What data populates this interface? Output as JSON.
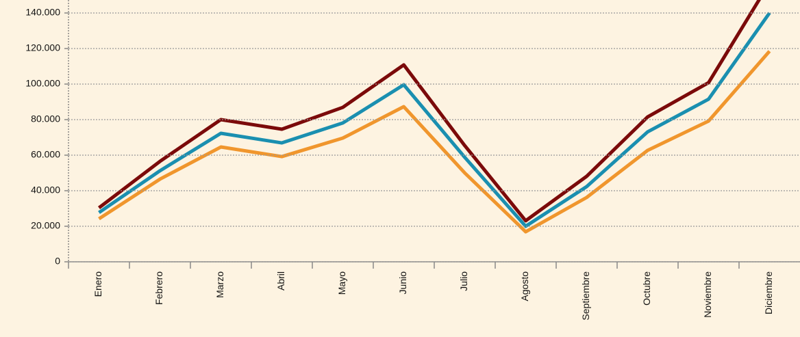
{
  "chart_data": {
    "type": "line",
    "categories": [
      "Enero",
      "Febrero",
      "Marzo",
      "Abril",
      "Mayo",
      "Junio",
      "Julio",
      "Agosto",
      "Septiembre",
      "Octubre",
      "Noviembre",
      "Diciembre"
    ],
    "series": [
      {
        "color": "#7b0a0a",
        "values": [
          30400,
          56500,
          80000,
          74600,
          86900,
          110800,
          65400,
          23100,
          48100,
          81500,
          100800,
          157000
        ]
      },
      {
        "color": "#1a8fb0",
        "values": [
          27700,
          51200,
          72300,
          66900,
          78100,
          99600,
          58800,
          20000,
          42300,
          73100,
          91500,
          140000
        ]
      },
      {
        "color": "#f0962d",
        "values": [
          24200,
          46500,
          64600,
          59200,
          69600,
          87300,
          50000,
          16900,
          36200,
          62700,
          79200,
          118500
        ]
      }
    ],
    "ylim": [
      0,
      147300
    ],
    "yticks": [
      0,
      {
        "value": 20000,
        "label": "20.000"
      },
      {
        "value": 40000,
        "label": "40.000"
      },
      {
        "value": 60000,
        "label": "60.000"
      },
      {
        "value": 80000,
        "label": "80.000"
      },
      {
        "value": 100000,
        "label": "100.000"
      },
      {
        "value": 120000,
        "label": "120.000"
      },
      {
        "value": 140000,
        "label": "140.000"
      }
    ],
    "grid": true
  }
}
